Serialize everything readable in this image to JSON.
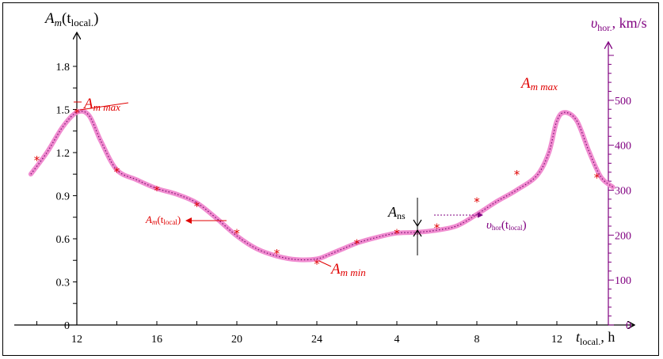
{
  "chart_data": {
    "type": "line",
    "x_ticks": [
      "12",
      "16",
      "20",
      "24",
      "4",
      "8",
      "12"
    ],
    "x_axis_label": "t",
    "x_axis_label_sub": "local.",
    "x_axis_unit": ", h",
    "y_axis_label": "A",
    "y_axis_label_sub": "m",
    "y_axis_label_arg": "(t",
    "y_axis_label_arg_sub": "local.",
    "y_axis_label_close": ")",
    "y_ticks": [
      "0",
      "0.3",
      "0.6",
      "0.9",
      "1.2",
      "1.5",
      "1.8"
    ],
    "y_ylim": [
      0,
      1.95
    ],
    "y2_axis_label": "υ",
    "y2_axis_label_sub": "hor.",
    "y2_axis_unit": ", km/s",
    "y2_ticks": [
      "0",
      "100",
      "200",
      "300",
      "400",
      "500"
    ],
    "y2_ylim": [
      0,
      600
    ],
    "x_range_hours": [
      9.7,
      38.8
    ],
    "series": [
      {
        "kind": "smooth-curve",
        "color": "#f08cd0",
        "x": [
          9.7,
          10.5,
          11.3,
          12.0,
          12.6,
          13.2,
          14.0,
          15.0,
          16.0,
          17.0,
          18.0,
          19.0,
          20.0,
          21.0,
          22.0,
          23.0,
          24.0,
          24.6,
          25.3,
          26.0,
          27.0,
          28.0,
          29.0,
          30.0,
          31.0,
          32.0,
          33.0,
          34.0,
          35.0,
          35.6,
          36.0,
          36.4,
          37.0,
          37.6,
          38.2,
          38.8
        ],
        "y": [
          1.05,
          1.2,
          1.38,
          1.48,
          1.46,
          1.28,
          1.08,
          1.01,
          0.95,
          0.91,
          0.85,
          0.74,
          0.62,
          0.53,
          0.48,
          0.455,
          0.46,
          0.49,
          0.53,
          0.57,
          0.61,
          0.64,
          0.645,
          0.66,
          0.69,
          0.77,
          0.86,
          0.94,
          1.04,
          1.2,
          1.42,
          1.48,
          1.42,
          1.21,
          1.03,
          0.96
        ]
      },
      {
        "kind": "markers",
        "color": "#e00000",
        "x": [
          10.0,
          12.0,
          14.0,
          16.0,
          18.0,
          20.0,
          22.0,
          24.0,
          26.0,
          28.0,
          30.0,
          32.0,
          34.0,
          38.0
        ],
        "y": [
          1.15,
          1.48,
          1.07,
          0.94,
          0.83,
          0.64,
          0.5,
          0.43,
          0.57,
          0.64,
          0.68,
          0.86,
          1.05,
          1.03
        ]
      }
    ],
    "annotations": {
      "amax_left": {
        "main": "A",
        "sub": "m max"
      },
      "amax_right": {
        "main": "A",
        "sub": "m max"
      },
      "amin": {
        "main": "A",
        "sub": "m min"
      },
      "ans": {
        "main": "A",
        "sub": "ns"
      },
      "am_local": {
        "main": "A",
        "sub": "m",
        "arg": "(t",
        "arg_sub": "local",
        "close": ")"
      },
      "vhor_local": {
        "main": "υ",
        "sub": "hor",
        "arg": "(t",
        "arg_sub": "local",
        "close": ")"
      }
    }
  }
}
